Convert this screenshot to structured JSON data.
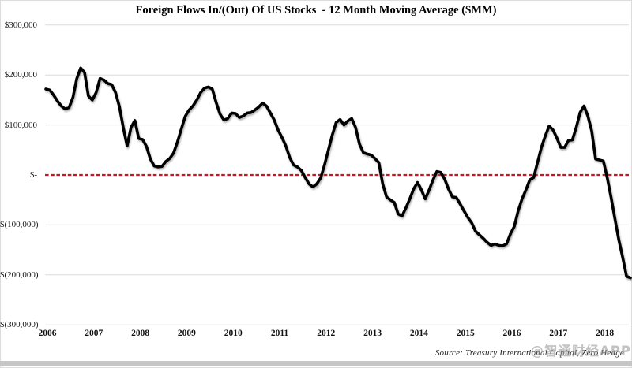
{
  "header": {
    "title": "Foreign Flows In/(Out) Of US Stocks  - 12 Month Moving Average ($MM)"
  },
  "footer": {
    "source": "Source: Treasury International Capital, Zero Hedge",
    "watermark": "@智通财经APP"
  },
  "colors": {
    "line": "#000000",
    "zero_line": "#cc1522",
    "gridline": "#dcdcdc",
    "bottom_bar": "#c6c6c6",
    "label": "#1a1a1a"
  },
  "chart_data": {
    "type": "line",
    "title": "Foreign Flows In/(Out) Of US Stocks - 12 Month Moving Average ($MM)",
    "units": "$MM",
    "frequency": "monthly",
    "x_start": "2006-01",
    "x_end": "2018-08",
    "grid": "horizontal",
    "legend": "none",
    "ylim": [
      -300000,
      300000
    ],
    "zero_line": {
      "value": 0,
      "style": "dashed",
      "color": "red"
    },
    "x_tick_years": [
      "2006",
      "2007",
      "2008",
      "2009",
      "2010",
      "2011",
      "2012",
      "2013",
      "2014",
      "2015",
      "2016",
      "2017",
      "2018"
    ],
    "y_ticks": [
      {
        "label": "$300,000",
        "value": 300000
      },
      {
        "label": "$200,000",
        "value": 200000
      },
      {
        "label": "$100,000",
        "value": 100000
      },
      {
        "label": "$-",
        "value": 0
      },
      {
        "label": "$(100,000)",
        "value": -100000
      },
      {
        "label": "$(200,000)",
        "value": -200000
      },
      {
        "label": "$(300,000)",
        "value": -300000
      }
    ],
    "series": [
      {
        "name": "Foreign flows into US stocks, 12-month moving average ($MM)",
        "values": [
          172000,
          170000,
          160000,
          148000,
          138000,
          132000,
          135000,
          155000,
          193000,
          214000,
          205000,
          158000,
          150000,
          165000,
          193000,
          190000,
          183000,
          181000,
          165000,
          137000,
          95000,
          58000,
          95000,
          109000,
          73000,
          71000,
          57000,
          32000,
          18000,
          16000,
          17000,
          27000,
          33000,
          44000,
          66000,
          92000,
          117000,
          130000,
          138000,
          150000,
          165000,
          174000,
          176000,
          172000,
          145000,
          122000,
          110000,
          113000,
          124000,
          123000,
          115000,
          118000,
          124000,
          125000,
          130000,
          136000,
          144000,
          138000,
          124000,
          110000,
          90000,
          75000,
          58000,
          35000,
          20000,
          16000,
          9000,
          -5000,
          -18000,
          -24000,
          -18000,
          -6000,
          20000,
          50000,
          80000,
          105000,
          111000,
          100000,
          108000,
          113000,
          95000,
          62000,
          45000,
          42000,
          40000,
          33000,
          25000,
          -18000,
          -44000,
          -50000,
          -55000,
          -78000,
          -82000,
          -66000,
          -48000,
          -28000,
          -15000,
          -30000,
          -48000,
          -30000,
          -10000,
          7000,
          5000,
          -8000,
          -28000,
          -44000,
          -45000,
          -58000,
          -72000,
          -85000,
          -96000,
          -113000,
          -120000,
          -127000,
          -135000,
          -141000,
          -138000,
          -141000,
          -142000,
          -138000,
          -118000,
          -103000,
          -72000,
          -48000,
          -30000,
          -10000,
          -5000,
          25000,
          55000,
          78000,
          98000,
          90000,
          74000,
          55000,
          55000,
          69000,
          70000,
          95000,
          125000,
          138000,
          118000,
          88000,
          32000,
          30000,
          28000,
          -5000,
          -45000,
          -88000,
          -130000,
          -165000,
          -203000,
          -206000
        ]
      }
    ]
  }
}
